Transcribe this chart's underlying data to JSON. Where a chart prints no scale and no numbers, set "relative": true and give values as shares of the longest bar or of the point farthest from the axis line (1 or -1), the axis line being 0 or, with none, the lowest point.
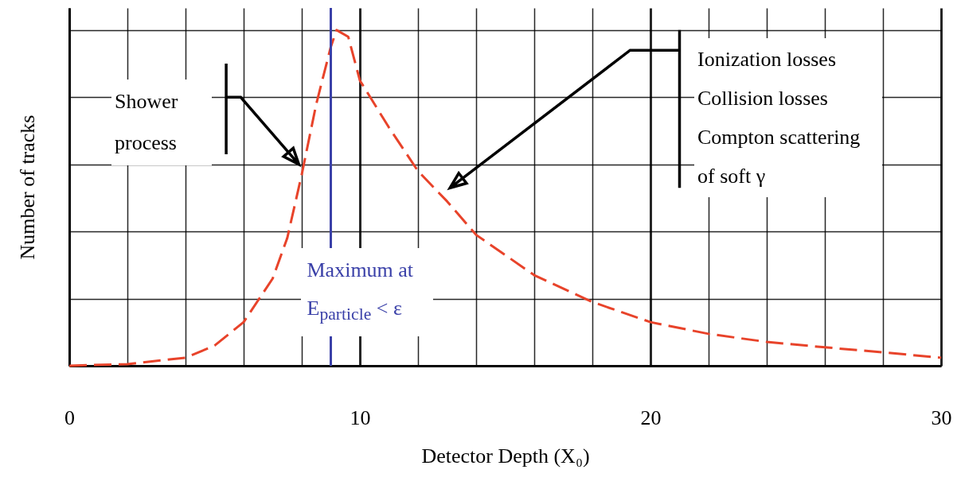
{
  "chart_data": {
    "type": "line",
    "relative": true,
    "xlabel": "Detector Depth (X₀)",
    "ylabel": "Number of tracks",
    "xlim": [
      0,
      30
    ],
    "xticks": [
      0,
      {
        "value": 2,
        "label": null
      },
      {
        "value": 4,
        "label": null
      },
      {
        "value": 6,
        "label": null
      },
      {
        "value": 8,
        "label": null
      },
      10,
      {
        "value": 12,
        "label": null
      },
      {
        "value": 14,
        "label": null
      },
      {
        "value": 16,
        "label": null
      },
      {
        "value": 18,
        "label": null
      },
      20,
      {
        "value": 22,
        "label": null
      },
      {
        "value": 24,
        "label": null
      },
      {
        "value": 26,
        "label": null
      },
      {
        "value": 28,
        "label": null
      },
      30
    ],
    "grid": true,
    "line_style": "dashed",
    "series": [
      {
        "color": "#e8432a",
        "x": [
          0,
          2,
          4,
          5,
          6,
          7,
          7.5,
          8,
          8.5,
          9,
          9.2,
          9.6,
          10,
          11,
          12,
          13,
          14,
          16,
          18,
          20,
          22,
          24,
          26,
          28,
          30
        ],
        "values": [
          0,
          0.005,
          0.024,
          0.06,
          0.13,
          0.26,
          0.38,
          0.57,
          0.78,
          0.95,
          1,
          0.98,
          0.85,
          0.71,
          0.58,
          0.49,
          0.39,
          0.27,
          0.19,
          0.13,
          0.095,
          0.071,
          0.055,
          0.04,
          0.024
        ]
      }
    ],
    "ref_lines": [
      {
        "axis": "x",
        "value": 9,
        "label": "Maximum at E$_{particle}$ < ε",
        "color": "#3a40a8"
      }
    ],
    "annotations": [
      "Shower process",
      "Ionization losses",
      "Collision losses",
      "Compton scattering of soft γ"
    ]
  }
}
